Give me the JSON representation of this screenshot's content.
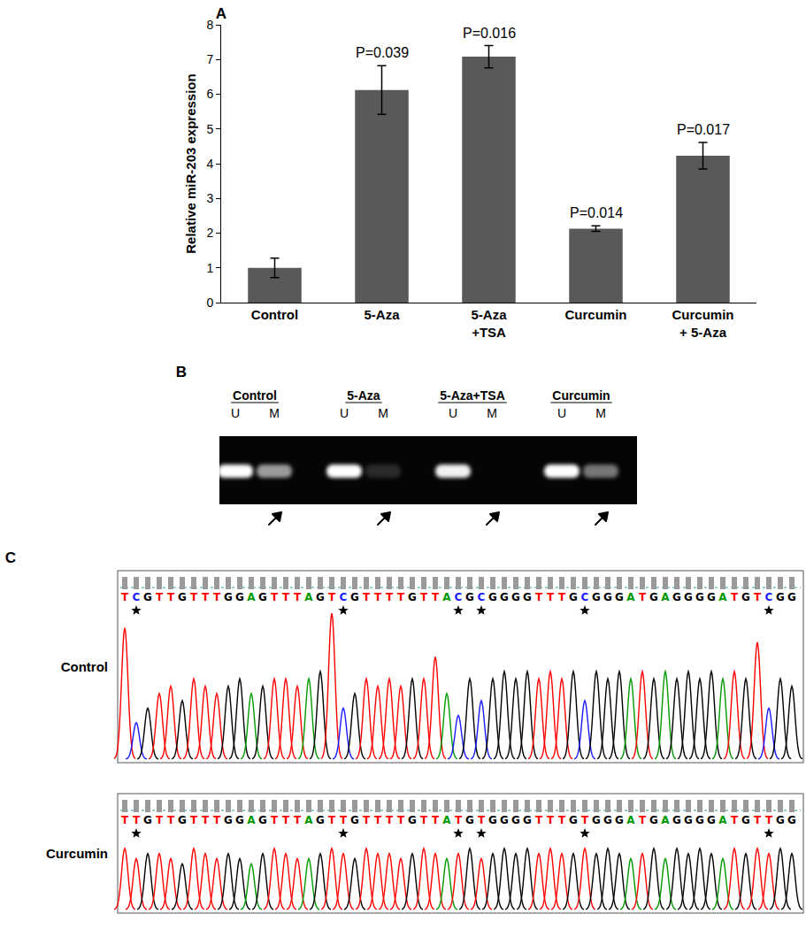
{
  "chart_data": {
    "type": "bar",
    "title": "A",
    "categories": [
      "Control",
      "5-Aza",
      "5-Aza\n+TSA",
      "Curcumin",
      "Curcumin\n+ 5-Aza"
    ],
    "values": [
      1.0,
      6.12,
      7.08,
      2.13,
      4.23
    ],
    "errors": [
      0.28,
      0.7,
      0.32,
      0.08,
      0.38
    ],
    "color": "#595959",
    "y_label": "Relative miR-203 expression",
    "ylim": [
      0,
      8
    ],
    "yticks": [
      0,
      1,
      2,
      3,
      4,
      5,
      6,
      7,
      8
    ],
    "grid": false,
    "annotations": [
      {
        "category": "5-Aza",
        "text": "P=0.039"
      },
      {
        "category": "5-Aza\n+TSA",
        "text": "P=0.016"
      },
      {
        "category": "Curcumin",
        "text": "P=0.014"
      },
      {
        "category": "Curcumin\n+ 5-Aza",
        "text": "P=0.017"
      }
    ]
  },
  "gel": {
    "label": "B",
    "groups": [
      {
        "name": "Control",
        "lanes": [
          {
            "label": "U",
            "intensity": 1.0
          },
          {
            "label": "M",
            "intensity": 0.6
          }
        ]
      },
      {
        "name": "5-Aza",
        "lanes": [
          {
            "label": "U",
            "intensity": 1.0
          },
          {
            "label": "M",
            "intensity": 0.15
          }
        ]
      },
      {
        "name": "5-Aza+TSA",
        "lanes": [
          {
            "label": "U",
            "intensity": 0.95
          },
          {
            "label": "M",
            "intensity": 0.0
          }
        ]
      },
      {
        "name": "Curcumin",
        "lanes": [
          {
            "label": "U",
            "intensity": 1.0
          },
          {
            "label": "M",
            "intensity": 0.45
          }
        ]
      }
    ]
  },
  "sequencing": {
    "label": "C",
    "base_colors": {
      "A": "#009a00",
      "C": "#1a1aff",
      "G": "#000000",
      "T": "#ff0000"
    },
    "traces": [
      {
        "name": "Control",
        "sequence": "TCGTTGTTTGGAGTTTAGTCGTTTTGTTACGCGGGGTTTGCGGGATGAGGGGATGTCGG",
        "marked_positions": [
          1,
          19,
          29,
          31,
          40,
          56
        ],
        "peak_heights": [
          90,
          25,
          35,
          45,
          50,
          40,
          55,
          50,
          45,
          50,
          55,
          45,
          50,
          55,
          55,
          50,
          55,
          60,
          100,
          35,
          45,
          55,
          50,
          55,
          50,
          55,
          55,
          70,
          45,
          30,
          55,
          40,
          55,
          60,
          55,
          60,
          55,
          60,
          55,
          60,
          40,
          60,
          55,
          60,
          55,
          60,
          55,
          60,
          55,
          60,
          55,
          60,
          55,
          60,
          55,
          80,
          35,
          55,
          50
        ]
      },
      {
        "name": "Curcumin",
        "sequence": "TTGTTGTTTGGAGTTTAGTTGTTTTGTTATGTGGGGTTTGTGGGATGAGGGGATGTTGG",
        "marked_positions": [
          1,
          19,
          29,
          31,
          40,
          56
        ],
        "peak_heights": [
          60,
          50,
          55,
          55,
          50,
          45,
          60,
          55,
          50,
          55,
          50,
          45,
          55,
          60,
          55,
          50,
          50,
          55,
          60,
          55,
          50,
          60,
          55,
          55,
          50,
          55,
          60,
          55,
          50,
          55,
          60,
          50,
          55,
          60,
          55,
          60,
          55,
          60,
          55,
          55,
          60,
          55,
          60,
          55,
          50,
          55,
          60,
          50,
          60,
          55,
          60,
          55,
          50,
          60,
          55,
          60,
          55,
          60,
          55
        ]
      }
    ]
  }
}
